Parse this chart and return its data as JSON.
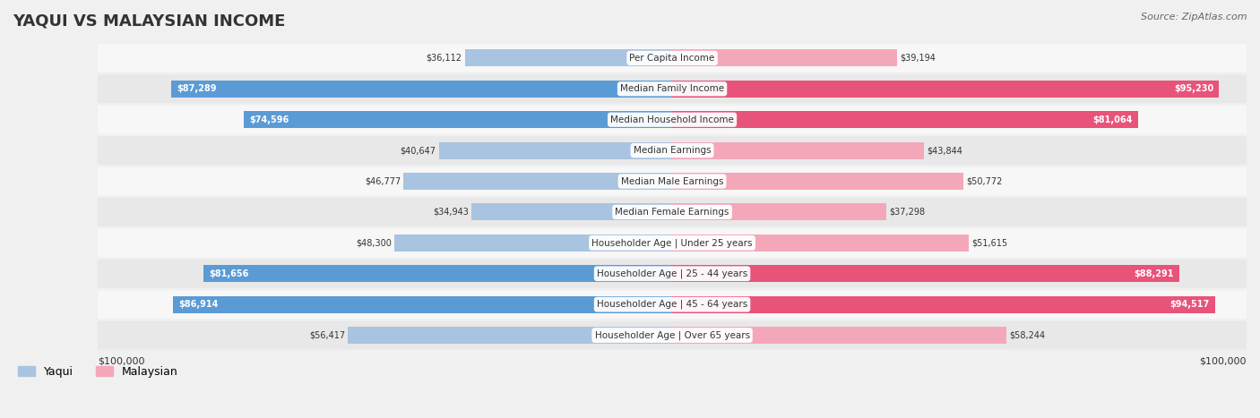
{
  "title": "YAQUI VS MALAYSIAN INCOME",
  "source": "Source: ZipAtlas.com",
  "categories": [
    "Per Capita Income",
    "Median Family Income",
    "Median Household Income",
    "Median Earnings",
    "Median Male Earnings",
    "Median Female Earnings",
    "Householder Age | Under 25 years",
    "Householder Age | 25 - 44 years",
    "Householder Age | 45 - 64 years",
    "Householder Age | Over 65 years"
  ],
  "yaqui_values": [
    36112,
    87289,
    74596,
    40647,
    46777,
    34943,
    48300,
    81656,
    86914,
    56417
  ],
  "malaysian_values": [
    39194,
    95230,
    81064,
    43844,
    50772,
    37298,
    51615,
    88291,
    94517,
    58244
  ],
  "yaqui_labels": [
    "$36,112",
    "$87,289",
    "$74,596",
    "$40,647",
    "$46,777",
    "$34,943",
    "$48,300",
    "$81,656",
    "$86,914",
    "$56,417"
  ],
  "malaysian_labels": [
    "$39,194",
    "$95,230",
    "$81,064",
    "$43,844",
    "$50,772",
    "$37,298",
    "$51,615",
    "$88,291",
    "$94,517",
    "$58,244"
  ],
  "max_value": 100000,
  "yaqui_color_light": "#a8c4e0",
  "yaqui_color_dark": "#5b9bd5",
  "malaysian_color_light": "#f4a7b9",
  "malaysian_color_dark": "#e8537a",
  "bg_color": "#f0f0f0",
  "row_bg_light": "#f7f7f7",
  "row_bg_dark": "#e8e8e8",
  "label_bg": "#ffffff",
  "threshold_dark": 60000
}
